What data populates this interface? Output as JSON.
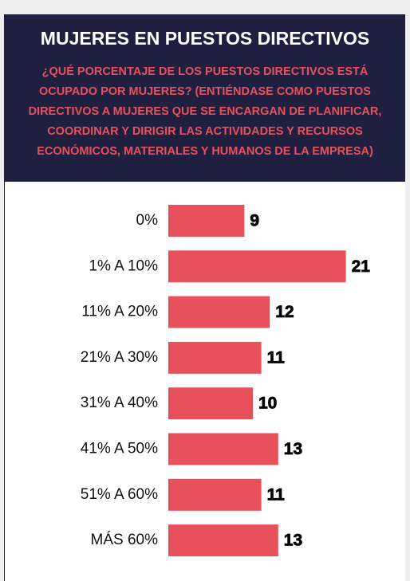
{
  "chart_data": {
    "type": "bar",
    "orientation": "horizontal",
    "title": "MUJERES EN PUESTOS DIRECTIVOS",
    "subtitle": [
      "¿QUÉ PORCENTAJE DE LOS PUESTOS DIRECTIVOS ESTÁ",
      "OCUPADO POR MUJERES? (ENTIÉNDASE COMO PUESTOS",
      "DIRECTIVOS A MUJERES QUE SE ENCARGAN DE PLANIFICAR,",
      "COORDINAR Y DIRIGIR LAS ACTIVIDADES Y RECURSOS",
      "ECONÓMICOS, MATERIALES Y HUMANOS DE LA EMPRESA)"
    ],
    "categories": [
      "0%",
      "1% A 10%",
      "11% A 20%",
      "21% A 30%",
      "31% A 40%",
      "41% A 50%",
      "51% A 60%",
      "MÁS 60%"
    ],
    "values": [
      9,
      21,
      12,
      11,
      10,
      13,
      11,
      13
    ],
    "color": "#e8505b"
  }
}
